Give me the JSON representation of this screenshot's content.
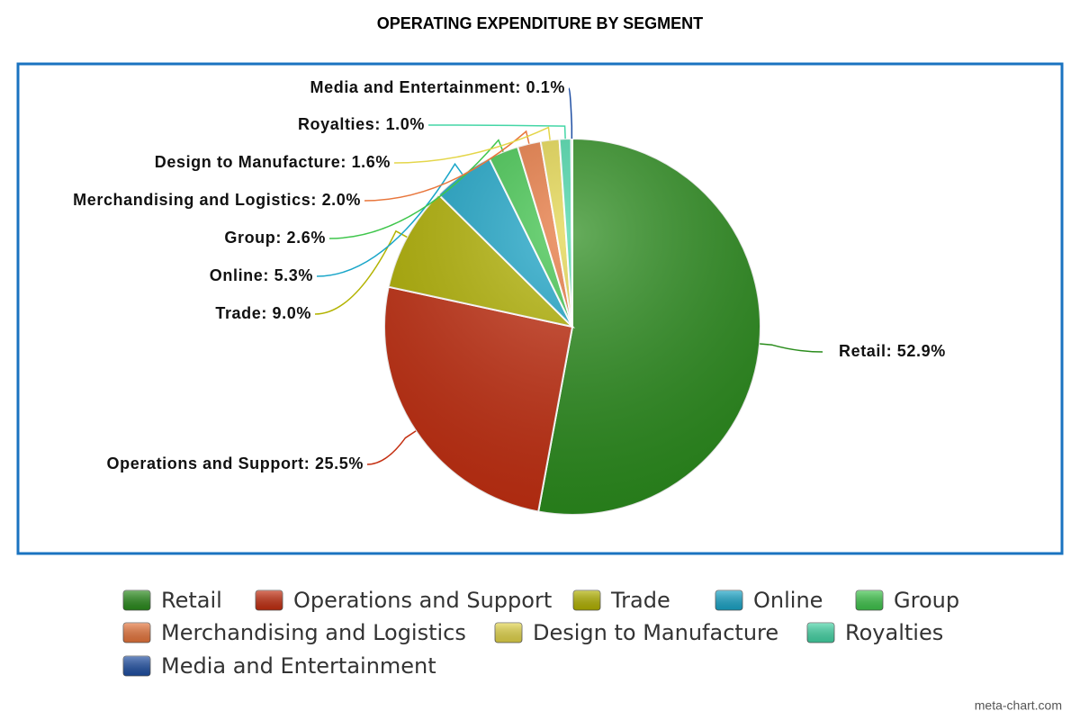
{
  "chart_data": {
    "type": "pie",
    "title": "OPERATING EXPENDITURE BY SEGMENT",
    "categories": [
      "Retail",
      "Operations and Support",
      "Trade",
      "Online",
      "Group",
      "Merchandising and Logistics",
      "Design to Manufacture",
      "Royalties",
      "Media and Entertainment"
    ],
    "values": [
      52.9,
      25.5,
      9.0,
      5.3,
      2.6,
      2.0,
      1.6,
      1.0,
      0.1
    ],
    "value_labels": [
      "Retail: 52.9%",
      "Operations and Support: 25.5%",
      "Trade: 9.0%",
      "Online: 5.3%",
      "Group: 2.6%",
      "Merchandising and Logistics: 2.0%",
      "Design to Manufacture: 1.6%",
      "Royalties: 1.0%",
      "Media and Entertainment: 0.1%"
    ],
    "colors": [
      "#2a8c1c",
      "#c42e10",
      "#b3b300",
      "#1aa6c9",
      "#3fc64c",
      "#e8763c",
      "#e4d64a",
      "#44d6a6",
      "#1f4fa3"
    ],
    "legend": "bottom",
    "credit": "meta-chart.com"
  }
}
